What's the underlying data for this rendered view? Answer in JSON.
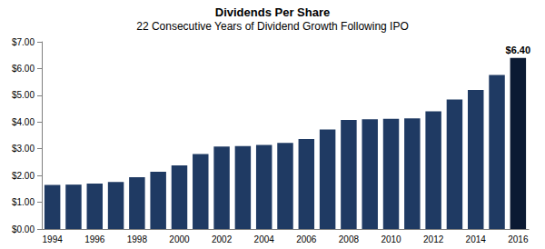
{
  "chart_data": {
    "type": "bar",
    "title": "Dividends Per Share",
    "subtitle": "22 Consecutive Years of Dividend Growth Following IPO",
    "categories": [
      "1994",
      null,
      "1996",
      null,
      "1998",
      null,
      "2000",
      null,
      "2002",
      null,
      "2004",
      null,
      "2006",
      null,
      "2008",
      null,
      "2010",
      null,
      "2012",
      null,
      "2014",
      null,
      "2016"
    ],
    "values": [
      1.65,
      1.66,
      1.7,
      1.76,
      1.94,
      2.14,
      2.38,
      2.8,
      3.08,
      3.1,
      3.14,
      3.22,
      3.36,
      3.72,
      4.08,
      4.1,
      4.12,
      4.14,
      4.4,
      4.84,
      5.2,
      5.76,
      6.4
    ],
    "colors": [
      "#1f3a63",
      "#1f3a63",
      "#1f3a63",
      "#1f3a63",
      "#1f3a63",
      "#1f3a63",
      "#1f3a63",
      "#1f3a63",
      "#1f3a63",
      "#1f3a63",
      "#1f3a63",
      "#1f3a63",
      "#1f3a63",
      "#1f3a63",
      "#1f3a63",
      "#1f3a63",
      "#1f3a63",
      "#1f3a63",
      "#1f3a63",
      "#1f3a63",
      "#1f3a63",
      "#1f3a63",
      "#0b1a33"
    ],
    "ylim": [
      0,
      7
    ],
    "yticks": [
      {
        "value": 0,
        "label": "$0.00"
      },
      {
        "value": 1,
        "label": "$1.00"
      },
      {
        "value": 2,
        "label": "$2.00"
      },
      {
        "value": 3,
        "label": "$3.00"
      },
      {
        "value": 4,
        "label": "$4.00"
      },
      {
        "value": 5,
        "label": "$5.00"
      },
      {
        "value": 6,
        "label": "$6.00"
      },
      {
        "value": 7,
        "label": "$7.00"
      }
    ],
    "grid": false,
    "annotations": [
      {
        "category": "2016",
        "text": "$6.40"
      }
    ]
  }
}
